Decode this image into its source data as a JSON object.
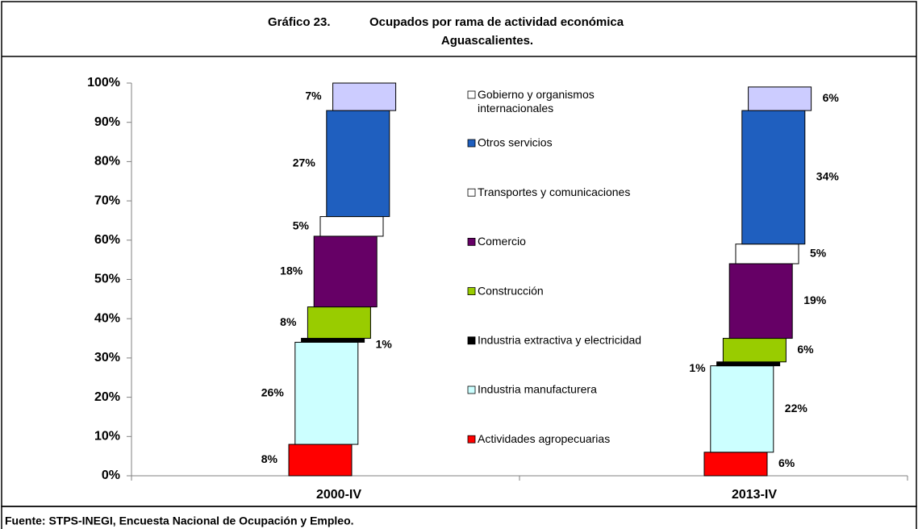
{
  "chart_data": {
    "type": "stacked-bar",
    "figure_label": "Gráfico 23.",
    "title": "Ocupados por rama de actividad económica",
    "subtitle": "Aguascalientes.",
    "source": "Fuente: STPS-INEGI, Encuesta Nacional de Ocupación y Empleo.",
    "categories": [
      "2000-IV",
      "2013-IV"
    ],
    "ylim": [
      0,
      100
    ],
    "yticks": [
      {
        "value": 0,
        "label": "0%"
      },
      {
        "value": 10,
        "label": "10%"
      },
      {
        "value": 20,
        "label": "20%"
      },
      {
        "value": 30,
        "label": "30%"
      },
      {
        "value": 40,
        "label": "40%"
      },
      {
        "value": 50,
        "label": "50%"
      },
      {
        "value": 60,
        "label": "60%"
      },
      {
        "value": 70,
        "label": "70%"
      },
      {
        "value": 80,
        "label": "80%"
      },
      {
        "value": 90,
        "label": "90%"
      },
      {
        "value": 100,
        "label": "100%"
      }
    ],
    "series": [
      {
        "name": "Actividades agropecuarias",
        "color": "#ff0000",
        "values": [
          8,
          6
        ],
        "value_labels": [
          "8%",
          "6%"
        ]
      },
      {
        "name": "Industria manufacturera",
        "color": "#ccffff",
        "values": [
          26,
          22
        ],
        "value_labels": [
          "26%",
          "22%"
        ]
      },
      {
        "name": "Industria extractiva y electricidad",
        "color": "#000000",
        "values": [
          1,
          1
        ],
        "value_labels": [
          "1%",
          "1%"
        ]
      },
      {
        "name": "Construcción",
        "color": "#99cc00",
        "values": [
          8,
          6
        ],
        "value_labels": [
          "8%",
          "6%"
        ]
      },
      {
        "name": "Comercio",
        "color": "#660066",
        "values": [
          18,
          19
        ],
        "value_labels": [
          "18%",
          "19%"
        ]
      },
      {
        "name": "Transportes y comunicaciones",
        "color": "#ffffff",
        "values": [
          5,
          5
        ],
        "value_labels": [
          "5%",
          "5%"
        ]
      },
      {
        "name": "Otros servicios",
        "color": "#1f5fbf",
        "values": [
          27,
          34
        ],
        "value_labels": [
          "27%",
          "34%"
        ]
      },
      {
        "name": "Gobierno y organismos internacionales",
        "color": "#ccccff",
        "values": [
          7,
          6
        ],
        "value_labels": [
          "7%",
          "6%"
        ]
      }
    ]
  }
}
